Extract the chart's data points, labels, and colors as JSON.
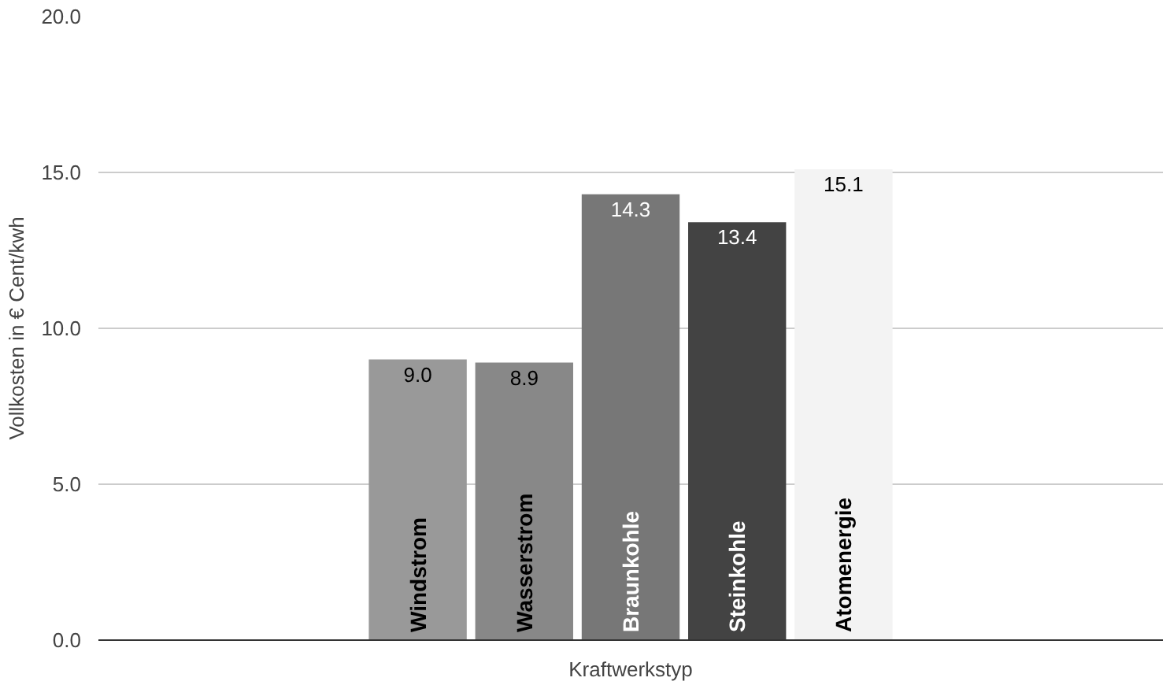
{
  "chart_data": {
    "type": "bar",
    "categories": [
      null
    ],
    "xlabel": "Kraftwerkstyp",
    "ylabel": "Vollkosten in € Cent/kwh",
    "series": [
      {
        "name": "Windstrom",
        "color": "#999999",
        "values": [
          9.0
        ],
        "value_labels": [
          "9.0"
        ]
      },
      {
        "name": "Wasserstrom",
        "color": "#888888",
        "values": [
          8.9
        ],
        "value_labels": [
          "8.9"
        ]
      },
      {
        "name": "Braunkohle",
        "color": "#777777",
        "values": [
          14.3
        ],
        "value_labels": [
          "14.3"
        ]
      },
      {
        "name": "Steinkohle",
        "color": "#434343",
        "values": [
          13.4
        ],
        "value_labels": [
          "13.4"
        ]
      },
      {
        "name": "Atomenergie",
        "color": "#f3f3f3",
        "values": [
          15.1
        ],
        "value_labels": [
          "15.1"
        ]
      }
    ],
    "ylim": [
      0,
      20
    ],
    "yticks": [
      {
        "value": 0,
        "label": "0.0"
      },
      {
        "value": 5,
        "label": "5.0"
      },
      {
        "value": 10,
        "label": "10.0"
      },
      {
        "value": 15,
        "label": "15.0"
      },
      {
        "value": 20,
        "label": "20.0"
      }
    ],
    "grid": "y",
    "tick_labels": "y"
  }
}
